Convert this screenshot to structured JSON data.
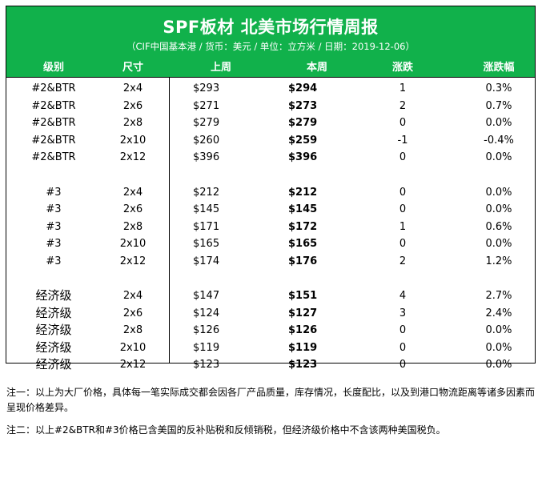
{
  "header": {
    "title": "SPF板材 北美市场行情周报",
    "subtitle": "（CIF中国基本港 / 货币：美元 / 单位：立方米 / 日期：2019-12-06）"
  },
  "colors": {
    "header_bg": "#11b14b",
    "header_text": "#ffffff"
  },
  "table": {
    "columns": [
      "级别",
      "尺寸",
      "上周",
      "本周",
      "涨跌",
      "涨跌幅"
    ],
    "rows": [
      {
        "grade": "#2&BTR",
        "size": "2x4",
        "last": "$293",
        "this": "$294",
        "change": "1",
        "pct": "0.3%"
      },
      {
        "grade": "#2&BTR",
        "size": "2x6",
        "last": "$271",
        "this": "$273",
        "change": "2",
        "pct": "0.7%"
      },
      {
        "grade": "#2&BTR",
        "size": "2x8",
        "last": "$279",
        "this": "$279",
        "change": "0",
        "pct": "0.0%"
      },
      {
        "grade": "#2&BTR",
        "size": "2x10",
        "last": "$260",
        "this": "$259",
        "change": "-1",
        "pct": "-0.4%"
      },
      {
        "grade": "#2&BTR",
        "size": "2x12",
        "last": "$396",
        "this": "$396",
        "change": "0",
        "pct": "0.0%"
      },
      {
        "grade": "#3",
        "size": "2x4",
        "last": "$212",
        "this": "$212",
        "change": "0",
        "pct": "0.0%"
      },
      {
        "grade": "#3",
        "size": "2x6",
        "last": "$145",
        "this": "$145",
        "change": "0",
        "pct": "0.0%"
      },
      {
        "grade": "#3",
        "size": "2x8",
        "last": "$171",
        "this": "$172",
        "change": "1",
        "pct": "0.6%"
      },
      {
        "grade": "#3",
        "size": "2x10",
        "last": "$165",
        "this": "$165",
        "change": "0",
        "pct": "0.0%"
      },
      {
        "grade": "#3",
        "size": "2x12",
        "last": "$174",
        "this": "$176",
        "change": "2",
        "pct": "1.2%"
      },
      {
        "grade": "经济级",
        "size": "2x4",
        "last": "$147",
        "this": "$151",
        "change": "4",
        "pct": "2.7%"
      },
      {
        "grade": "经济级",
        "size": "2x6",
        "last": "$124",
        "this": "$127",
        "change": "3",
        "pct": "2.4%"
      },
      {
        "grade": "经济级",
        "size": "2x8",
        "last": "$126",
        "this": "$126",
        "change": "0",
        "pct": "0.0%"
      },
      {
        "grade": "经济级",
        "size": "2x10",
        "last": "$119",
        "this": "$119",
        "change": "0",
        "pct": "0.0%"
      },
      {
        "grade": "经济级",
        "size": "2x12",
        "last": "$123",
        "this": "$123",
        "change": "0",
        "pct": "0.0%"
      }
    ]
  },
  "notes": [
    "注一：以上为大厂价格，具体每一笔实际成交都会因各厂产品质量，库存情况，长度配比，以及到港口物流距离等诸多因素而呈现价格差异。",
    "注二：以上#2&BTR和#3价格已含美国的反补贴税和反倾销税，但经济级价格中不含该两种美国税负。"
  ]
}
